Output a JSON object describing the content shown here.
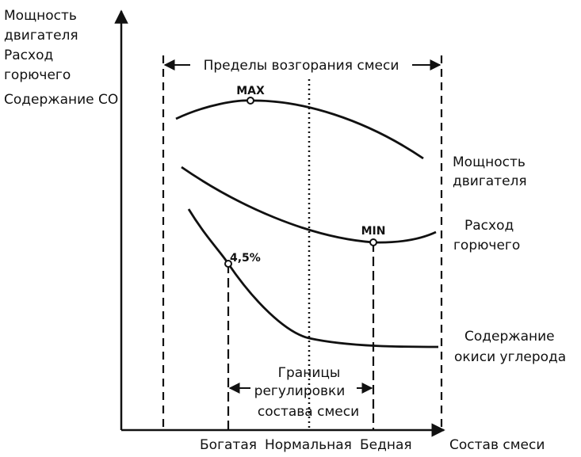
{
  "y_axis_label": [
    "Мощность",
    "двигателя",
    "Расход",
    "горючего",
    "Содержание СО"
  ],
  "flammability_limits_label": "Пределы возгорания смеси",
  "markers": {
    "max": "MAX",
    "min": "MIN",
    "co_point": "4,5%"
  },
  "curve_labels": {
    "power": [
      "Мощность",
      "двигателя"
    ],
    "fuel": [
      "Расход",
      "горючего"
    ],
    "co": [
      "Содержание",
      "окиси углерода"
    ]
  },
  "adjustment_limits_label": [
    "Границы",
    "регулировки",
    "состава смеси"
  ],
  "x_axis": {
    "rich": "Богатая",
    "normal": "Нормальная",
    "lean": "Бедная",
    "label": "Состав смеси"
  }
}
